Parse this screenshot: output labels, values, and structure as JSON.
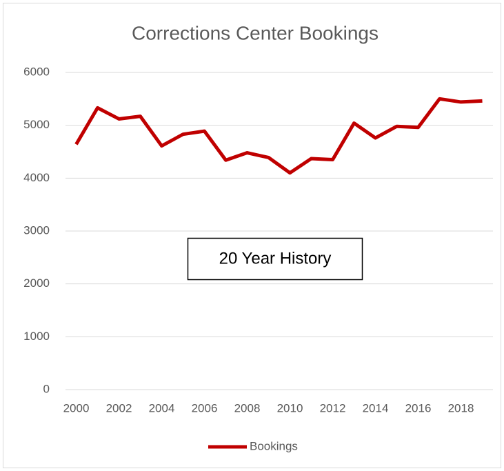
{
  "chart_data": {
    "type": "line",
    "title": "Corrections Center Bookings",
    "categories": [
      "2000",
      null,
      "2002",
      null,
      "2004",
      null,
      "2006",
      null,
      "2008",
      null,
      "2010",
      null,
      "2012",
      null,
      "2014",
      null,
      "2016",
      null,
      "2018",
      null
    ],
    "series": [
      {
        "name": "Bookings",
        "color": "#c00000",
        "values": [
          4640,
          5330,
          5120,
          5170,
          4610,
          4830,
          4890,
          4340,
          4480,
          4390,
          4100,
          4370,
          4350,
          5040,
          4760,
          4980,
          4960,
          5500,
          5440,
          5460
        ]
      }
    ],
    "ylim": [
      0,
      6000
    ],
    "yticks": [
      0,
      1000,
      2000,
      3000,
      4000,
      5000,
      6000
    ],
    "grid": true,
    "annotation": "20 Year History",
    "legend": "bottom"
  }
}
